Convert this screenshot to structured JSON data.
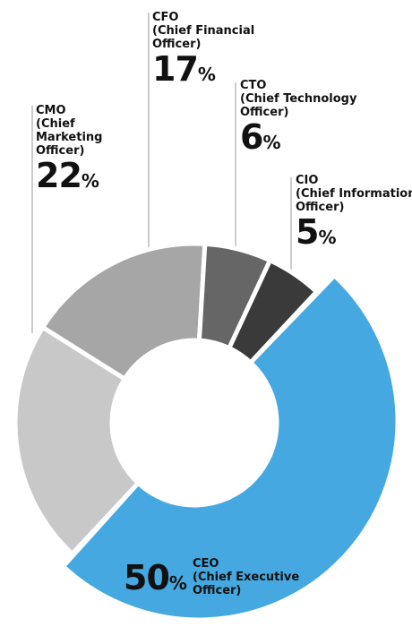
{
  "chart_data": {
    "type": "pie",
    "categories": [
      "CEO",
      "CMO",
      "CFO",
      "CTO",
      "CIO"
    ],
    "full_names": [
      "(Chief Executive Officer)",
      "(Chief Marketing Officer)",
      "(Chief Financial Officer)",
      "(Chief Technology Officer)",
      "(Chief Information Officer)"
    ],
    "values": [
      50,
      22,
      17,
      6,
      5
    ],
    "value_labels": [
      "50%",
      "22%",
      "17%",
      "6%",
      "5%"
    ],
    "colors": [
      "#45a8e0",
      "#c8c8c8",
      "#a6a6a6",
      "#666666",
      "#3a3a3a"
    ]
  }
}
